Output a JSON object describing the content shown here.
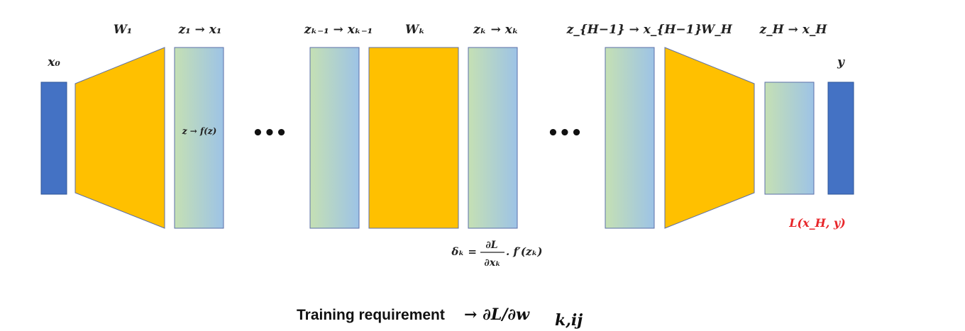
{
  "colors": {
    "io_block": "#4472c4",
    "io_stroke": "#2f5597",
    "weight_block": "#ffc000",
    "weight_stroke": "#5b6fa8",
    "activation_left": "#c5e0b4",
    "activation_right": "#9dc3e6",
    "loss_text": "#e8262a"
  },
  "labels": {
    "x0": "x₀",
    "w1": "W₁",
    "act1": "z₁ → x₁",
    "act_km1": "zₖ₋₁ → xₖ₋₁",
    "wk": "Wₖ",
    "actk": "zₖ → xₖ",
    "act_hm1": "z_{H−1} → x_{H−1}",
    "wh": "W_H",
    "acth": "z_H → x_H",
    "y": "y",
    "activation_fn": "z → f(z)",
    "loss": "L(x_H, y)"
  },
  "delta": {
    "lhs": "δₖ =",
    "numerator": "∂L",
    "denominator": "∂xₖ",
    "rhs": ". f′(zₖ)"
  },
  "ellipsis": "•••",
  "caption": {
    "text": "Training requirement",
    "math": "→ ∂L/∂w",
    "subscript": "k,ij"
  }
}
